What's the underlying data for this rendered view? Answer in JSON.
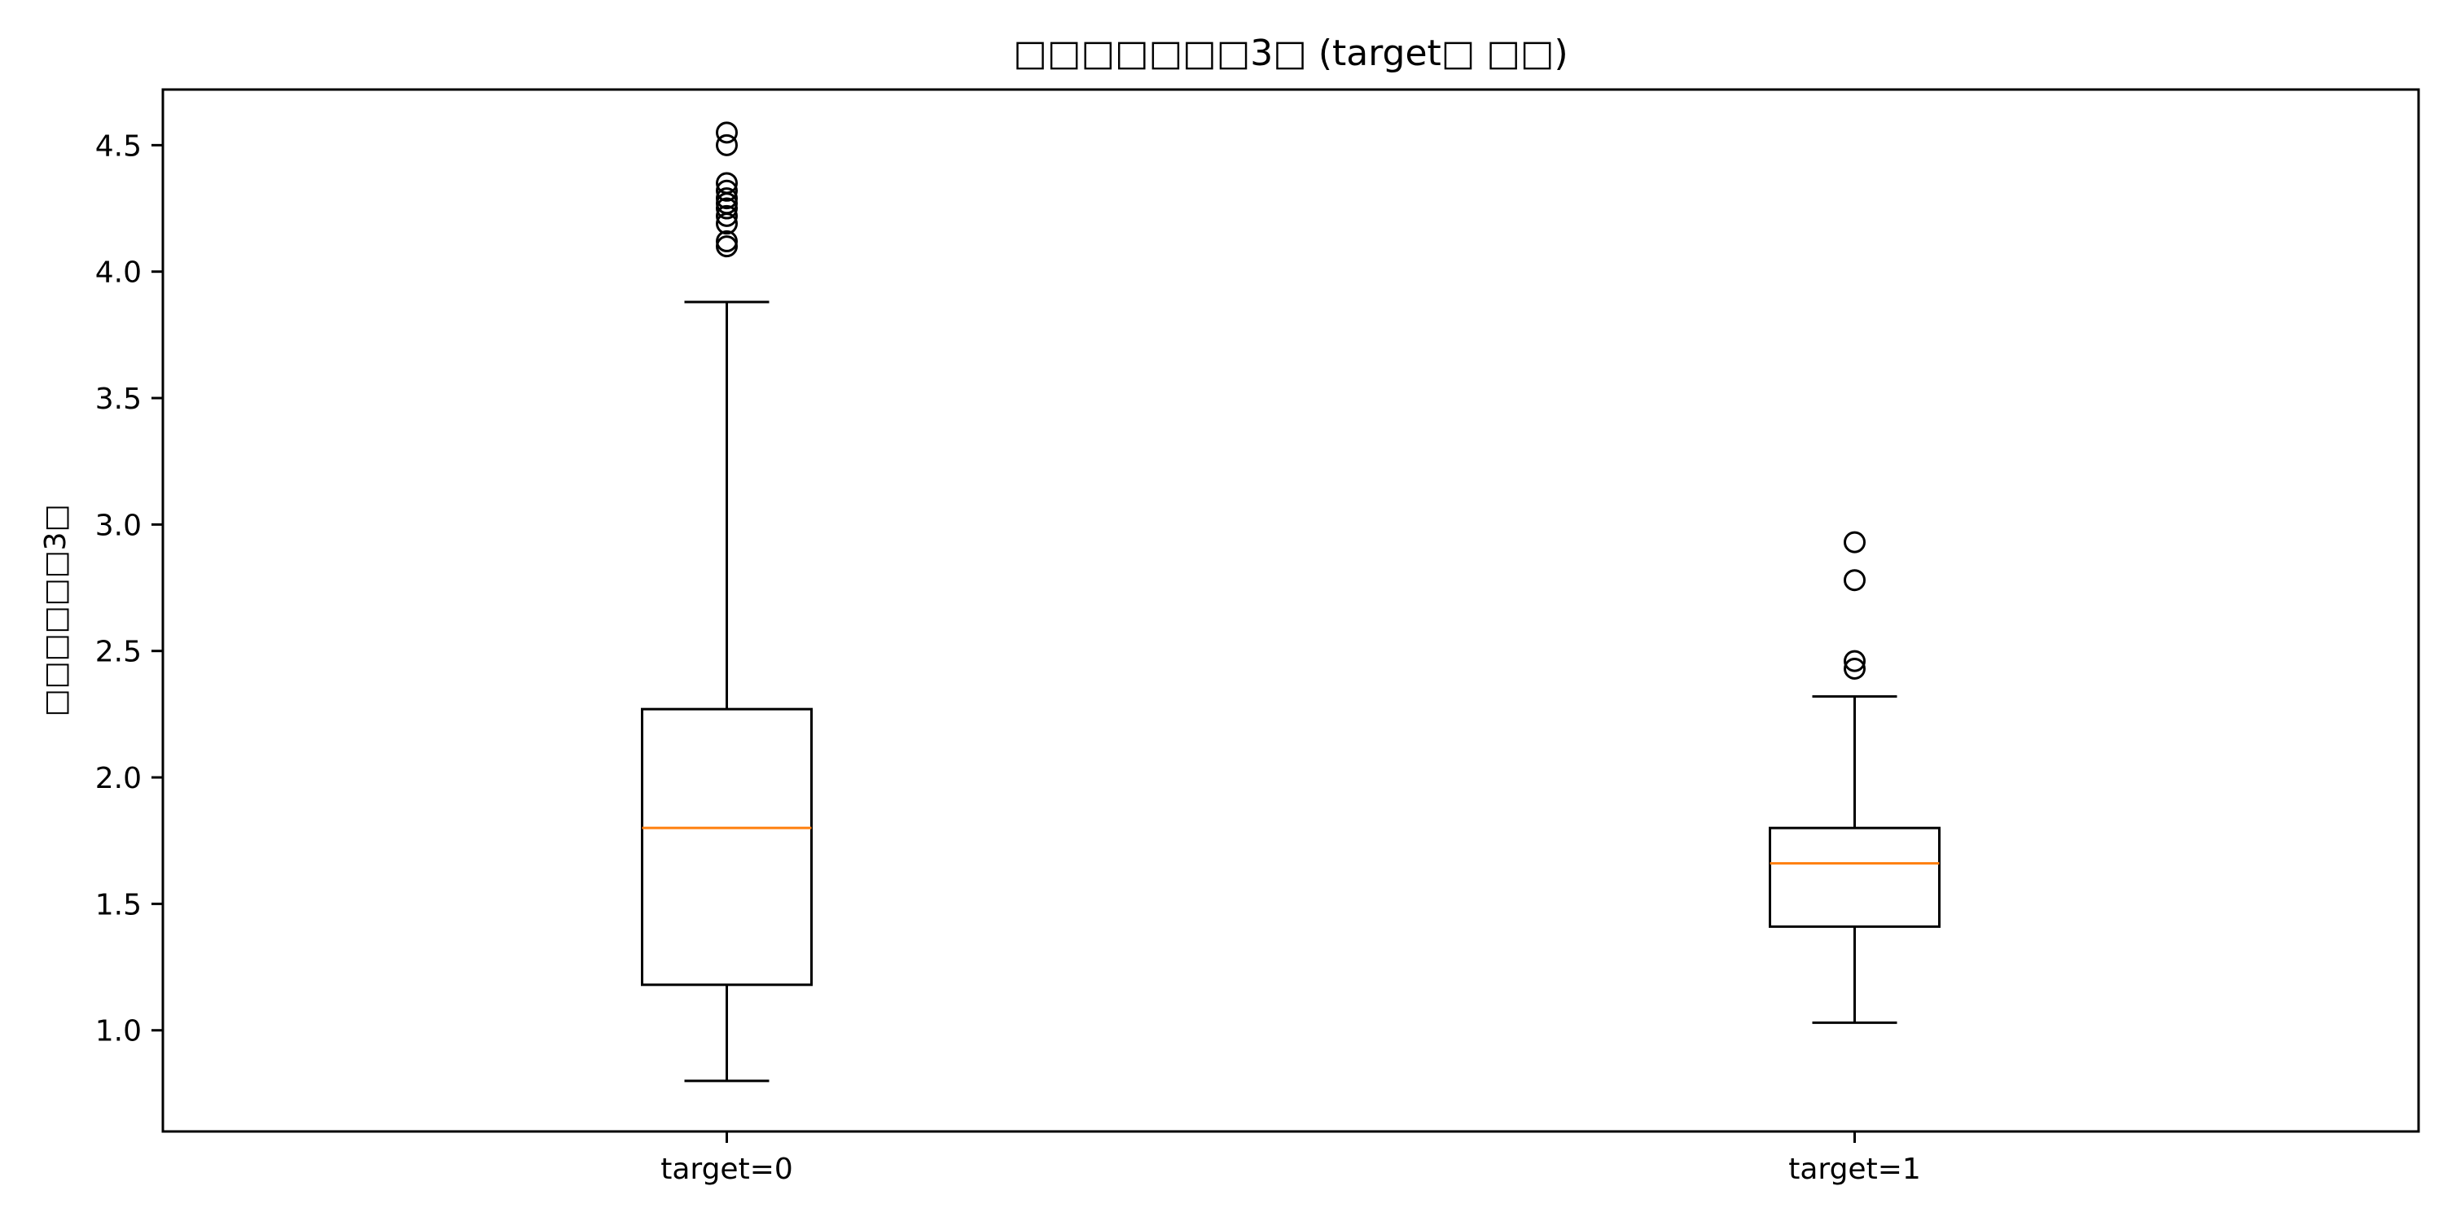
{
  "chart_data": {
    "type": "box",
    "title": "□□□□□□□3□ (target□ □□)",
    "xlabel": "",
    "ylabel": "□□□□□□3□",
    "ylim": [
      0.6,
      4.72
    ],
    "yticks": [
      1.0,
      1.5,
      2.0,
      2.5,
      3.0,
      3.5,
      4.0,
      4.5
    ],
    "ytick_labels": [
      "1.0",
      "1.5",
      "2.0",
      "2.5",
      "3.0",
      "3.5",
      "4.0",
      "4.5"
    ],
    "categories": [
      "target=0",
      "target=1"
    ],
    "grid": false,
    "boxes": [
      {
        "label": "target=0",
        "whisker_low": 0.8,
        "q1": 1.18,
        "median": 1.8,
        "q3": 2.27,
        "whisker_high": 3.88,
        "outliers": [
          4.1,
          4.12,
          4.19,
          4.22,
          4.25,
          4.27,
          4.29,
          4.32,
          4.35,
          4.5,
          4.55
        ]
      },
      {
        "label": "target=1",
        "whisker_low": 1.03,
        "q1": 1.41,
        "median": 1.66,
        "q3": 1.8,
        "whisker_high": 2.32,
        "outliers": [
          2.43,
          2.46,
          2.78,
          2.93
        ]
      }
    ],
    "colors": {
      "box": "#000000",
      "median": "#ff7f0e",
      "outlier": "#000000"
    }
  }
}
